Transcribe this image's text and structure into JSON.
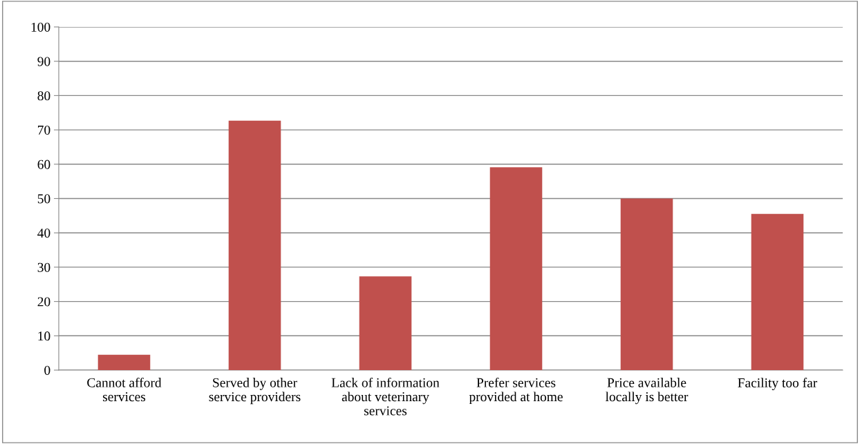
{
  "chart_data": {
    "type": "bar",
    "categories": [
      "Cannot afford\nservices",
      "Served by other\nservice providers",
      "Lack of information\nabout veterinary\nservices",
      "Prefer services\nprovided at home",
      "Price available\nlocally is better",
      "Facility too far"
    ],
    "values": [
      4.5,
      72.7,
      27.3,
      59.1,
      50,
      45.5
    ],
    "color": "#c0504d",
    "ylim": [
      0,
      100
    ],
    "yticks": [
      0,
      10,
      20,
      30,
      40,
      50,
      60,
      70,
      80,
      90,
      100
    ],
    "grid": "y"
  }
}
